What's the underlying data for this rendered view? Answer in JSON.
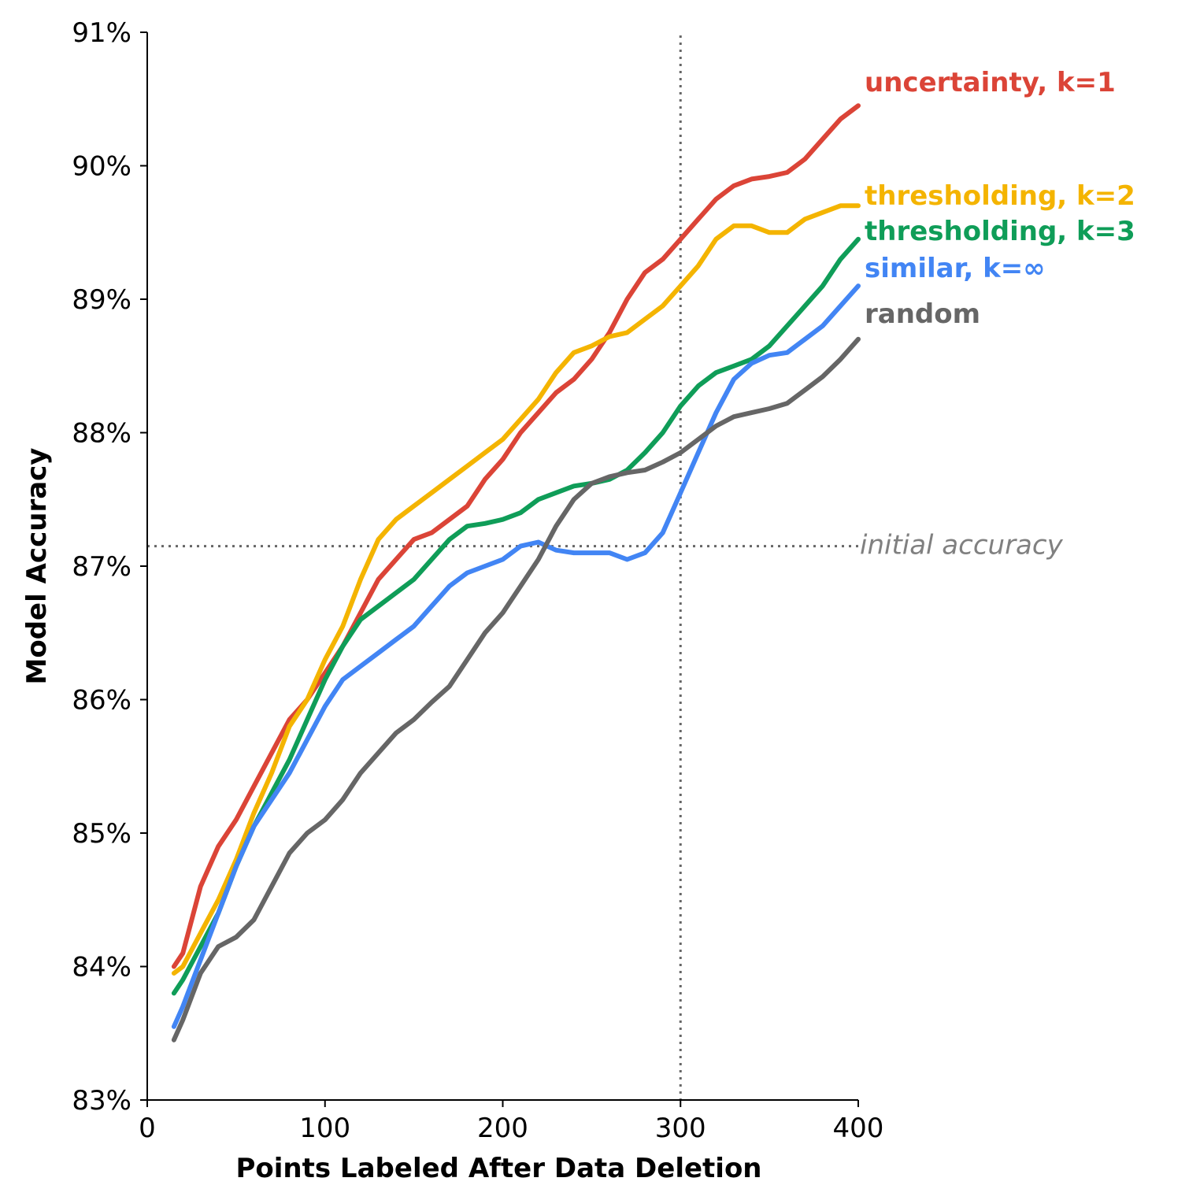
{
  "chart_data": {
    "type": "line",
    "xlabel": "Points Labeled After Data Deletion",
    "ylabel": "Model Accuracy",
    "xlim": [
      0,
      400
    ],
    "ylim": [
      83,
      91
    ],
    "x_ticks": [
      0,
      100,
      200,
      300,
      400
    ],
    "x_tick_labels": [
      "0",
      "100",
      "200",
      "300",
      "400"
    ],
    "y_ticks": [
      83,
      84,
      85,
      86,
      87,
      88,
      89,
      90,
      91
    ],
    "y_tick_labels": [
      "83%",
      "84%",
      "85%",
      "86%",
      "87%",
      "88%",
      "89%",
      "90%",
      "91%"
    ],
    "grid": false,
    "legend": "direct labels at right end of lines",
    "reference_lines": [
      {
        "orientation": "horizontal",
        "value": 87.15,
        "style": "dotted",
        "color": "#666666",
        "label": "initial accuracy"
      },
      {
        "orientation": "vertical",
        "value": 300,
        "style": "dotted",
        "color": "#666666",
        "label": ""
      }
    ],
    "series": [
      {
        "name": "uncertainty, k=1",
        "color": "#db4437",
        "points": [
          [
            15,
            84.0
          ],
          [
            20,
            84.1
          ],
          [
            30,
            84.6
          ],
          [
            40,
            84.9
          ],
          [
            50,
            85.1
          ],
          [
            60,
            85.35
          ],
          [
            70,
            85.6
          ],
          [
            80,
            85.85
          ],
          [
            90,
            86.0
          ],
          [
            100,
            86.2
          ],
          [
            110,
            86.4
          ],
          [
            120,
            86.65
          ],
          [
            130,
            86.9
          ],
          [
            140,
            87.05
          ],
          [
            150,
            87.2
          ],
          [
            160,
            87.25
          ],
          [
            170,
            87.35
          ],
          [
            180,
            87.45
          ],
          [
            190,
            87.65
          ],
          [
            200,
            87.8
          ],
          [
            210,
            88.0
          ],
          [
            220,
            88.15
          ],
          [
            230,
            88.3
          ],
          [
            240,
            88.4
          ],
          [
            250,
            88.55
          ],
          [
            260,
            88.75
          ],
          [
            270,
            89.0
          ],
          [
            280,
            89.2
          ],
          [
            290,
            89.3
          ],
          [
            300,
            89.45
          ],
          [
            310,
            89.6
          ],
          [
            320,
            89.75
          ],
          [
            330,
            89.85
          ],
          [
            340,
            89.9
          ],
          [
            350,
            89.92
          ],
          [
            360,
            89.95
          ],
          [
            370,
            90.05
          ],
          [
            380,
            90.2
          ],
          [
            390,
            90.35
          ],
          [
            400,
            90.45
          ]
        ]
      },
      {
        "name": "thresholding, k=2",
        "color": "#f4b400",
        "points": [
          [
            15,
            83.95
          ],
          [
            20,
            84.0
          ],
          [
            30,
            84.25
          ],
          [
            40,
            84.5
          ],
          [
            50,
            84.8
          ],
          [
            60,
            85.15
          ],
          [
            70,
            85.45
          ],
          [
            80,
            85.8
          ],
          [
            90,
            86.0
          ],
          [
            100,
            86.3
          ],
          [
            110,
            86.55
          ],
          [
            120,
            86.9
          ],
          [
            130,
            87.2
          ],
          [
            140,
            87.35
          ],
          [
            150,
            87.45
          ],
          [
            160,
            87.55
          ],
          [
            170,
            87.65
          ],
          [
            180,
            87.75
          ],
          [
            190,
            87.85
          ],
          [
            200,
            87.95
          ],
          [
            210,
            88.1
          ],
          [
            220,
            88.25
          ],
          [
            230,
            88.45
          ],
          [
            240,
            88.6
          ],
          [
            250,
            88.65
          ],
          [
            260,
            88.72
          ],
          [
            270,
            88.75
          ],
          [
            280,
            88.85
          ],
          [
            290,
            88.95
          ],
          [
            300,
            89.1
          ],
          [
            310,
            89.25
          ],
          [
            320,
            89.45
          ],
          [
            330,
            89.55
          ],
          [
            340,
            89.55
          ],
          [
            350,
            89.5
          ],
          [
            360,
            89.5
          ],
          [
            370,
            89.6
          ],
          [
            380,
            89.65
          ],
          [
            390,
            89.7
          ],
          [
            400,
            89.7
          ]
        ]
      },
      {
        "name": "thresholding, k=3",
        "color": "#0f9d58",
        "points": [
          [
            15,
            83.8
          ],
          [
            20,
            83.9
          ],
          [
            30,
            84.15
          ],
          [
            40,
            84.4
          ],
          [
            50,
            84.75
          ],
          [
            60,
            85.05
          ],
          [
            70,
            85.3
          ],
          [
            80,
            85.55
          ],
          [
            90,
            85.85
          ],
          [
            100,
            86.15
          ],
          [
            110,
            86.4
          ],
          [
            120,
            86.6
          ],
          [
            130,
            86.7
          ],
          [
            140,
            86.8
          ],
          [
            150,
            86.9
          ],
          [
            160,
            87.05
          ],
          [
            170,
            87.2
          ],
          [
            180,
            87.3
          ],
          [
            190,
            87.32
          ],
          [
            200,
            87.35
          ],
          [
            210,
            87.4
          ],
          [
            220,
            87.5
          ],
          [
            230,
            87.55
          ],
          [
            240,
            87.6
          ],
          [
            250,
            87.62
          ],
          [
            260,
            87.65
          ],
          [
            270,
            87.72
          ],
          [
            280,
            87.85
          ],
          [
            290,
            88.0
          ],
          [
            300,
            88.2
          ],
          [
            310,
            88.35
          ],
          [
            320,
            88.45
          ],
          [
            330,
            88.5
          ],
          [
            340,
            88.55
          ],
          [
            350,
            88.65
          ],
          [
            360,
            88.8
          ],
          [
            370,
            88.95
          ],
          [
            380,
            89.1
          ],
          [
            390,
            89.3
          ],
          [
            400,
            89.45
          ]
        ]
      },
      {
        "name": "similar, k=∞",
        "color": "#4285f4",
        "points": [
          [
            15,
            83.55
          ],
          [
            20,
            83.7
          ],
          [
            30,
            84.05
          ],
          [
            40,
            84.4
          ],
          [
            50,
            84.75
          ],
          [
            60,
            85.05
          ],
          [
            70,
            85.25
          ],
          [
            80,
            85.45
          ],
          [
            90,
            85.7
          ],
          [
            100,
            85.95
          ],
          [
            110,
            86.15
          ],
          [
            120,
            86.25
          ],
          [
            130,
            86.35
          ],
          [
            140,
            86.45
          ],
          [
            150,
            86.55
          ],
          [
            160,
            86.7
          ],
          [
            170,
            86.85
          ],
          [
            180,
            86.95
          ],
          [
            190,
            87.0
          ],
          [
            200,
            87.05
          ],
          [
            210,
            87.15
          ],
          [
            220,
            87.18
          ],
          [
            230,
            87.12
          ],
          [
            240,
            87.1
          ],
          [
            250,
            87.1
          ],
          [
            260,
            87.1
          ],
          [
            270,
            87.05
          ],
          [
            280,
            87.1
          ],
          [
            290,
            87.25
          ],
          [
            300,
            87.55
          ],
          [
            310,
            87.85
          ],
          [
            320,
            88.15
          ],
          [
            330,
            88.4
          ],
          [
            340,
            88.52
          ],
          [
            350,
            88.58
          ],
          [
            360,
            88.6
          ],
          [
            370,
            88.7
          ],
          [
            380,
            88.8
          ],
          [
            390,
            88.95
          ],
          [
            400,
            89.1
          ]
        ]
      },
      {
        "name": "random",
        "color": "#666666",
        "points": [
          [
            15,
            83.45
          ],
          [
            20,
            83.6
          ],
          [
            30,
            83.95
          ],
          [
            40,
            84.15
          ],
          [
            50,
            84.22
          ],
          [
            60,
            84.35
          ],
          [
            70,
            84.6
          ],
          [
            80,
            84.85
          ],
          [
            90,
            85.0
          ],
          [
            100,
            85.1
          ],
          [
            110,
            85.25
          ],
          [
            120,
            85.45
          ],
          [
            130,
            85.6
          ],
          [
            140,
            85.75
          ],
          [
            150,
            85.85
          ],
          [
            160,
            85.98
          ],
          [
            170,
            86.1
          ],
          [
            180,
            86.3
          ],
          [
            190,
            86.5
          ],
          [
            200,
            86.65
          ],
          [
            210,
            86.85
          ],
          [
            220,
            87.05
          ],
          [
            230,
            87.3
          ],
          [
            240,
            87.5
          ],
          [
            250,
            87.62
          ],
          [
            260,
            87.67
          ],
          [
            270,
            87.7
          ],
          [
            280,
            87.72
          ],
          [
            290,
            87.78
          ],
          [
            300,
            87.85
          ],
          [
            310,
            87.95
          ],
          [
            320,
            88.05
          ],
          [
            330,
            88.12
          ],
          [
            340,
            88.15
          ],
          [
            350,
            88.18
          ],
          [
            360,
            88.22
          ],
          [
            370,
            88.32
          ],
          [
            380,
            88.42
          ],
          [
            390,
            88.55
          ],
          [
            400,
            88.7
          ]
        ]
      }
    ]
  }
}
